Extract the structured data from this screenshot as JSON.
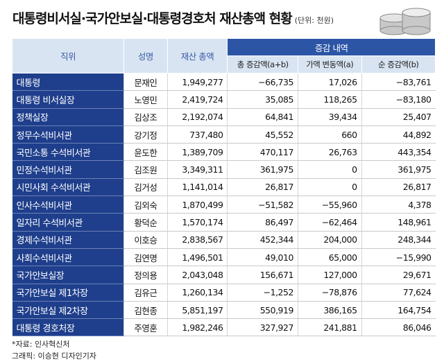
{
  "header": {
    "title": "대통령비서실·국가안보실·대통령경호처 재산총액 현황",
    "unit": "(단위: 천원)"
  },
  "table": {
    "columns": [
      "직위",
      "성명",
      "재산 총액",
      "증감 내역",
      "총 증감액(a+b)",
      "가액 변동액(a)",
      "순 증감액(b)"
    ],
    "rows": [
      [
        "대통령",
        "문재인",
        "1,949,277",
        "−66,735",
        "17,026",
        "−83,761"
      ],
      [
        "대통령 비서실장",
        "노영민",
        "2,419,724",
        "35,085",
        "118,265",
        "−83,180"
      ],
      [
        "정책실장",
        "김상조",
        "2,192,074",
        "64,841",
        "39,434",
        "25,407"
      ],
      [
        "정무수석비서관",
        "강기정",
        "737,480",
        "45,552",
        "660",
        "44,892"
      ],
      [
        "국민소통 수석비서관",
        "윤도한",
        "1,389,709",
        "470,117",
        "26,763",
        "443,354"
      ],
      [
        "민정수석비서관",
        "김조원",
        "3,349,311",
        "361,975",
        "0",
        "361,975"
      ],
      [
        "시민사회 수석비서관",
        "김거성",
        "1,141,014",
        "26,817",
        "0",
        "26,817"
      ],
      [
        "인사수석비서관",
        "김외숙",
        "1,870,499",
        "−51,582",
        "−55,960",
        "4,378"
      ],
      [
        "일자리 수석비서관",
        "황덕순",
        "1,570,174",
        "86,497",
        "−62,464",
        "148,961"
      ],
      [
        "경제수석비서관",
        "이호승",
        "2,838,567",
        "452,344",
        "204,000",
        "248,344"
      ],
      [
        "사회수석비서관",
        "김연명",
        "1,496,501",
        "49,010",
        "65,000",
        "−15,990"
      ],
      [
        "국가안보실장",
        "정의용",
        "2,043,048",
        "156,671",
        "127,000",
        "29,671"
      ],
      [
        "국가안보실 제1차장",
        "김유근",
        "1,260,134",
        "−1,252",
        "−78,876",
        "77,624"
      ],
      [
        "국가안보실 제2차장",
        "김현종",
        "5,851,197",
        "550,919",
        "386,165",
        "164,754"
      ],
      [
        "대통령 경호처장",
        "주영훈",
        "1,982,246",
        "327,927",
        "241,881",
        "86,046"
      ]
    ]
  },
  "footer": {
    "source": "*자료: 인사혁신처",
    "credit": "그래픽: 이승현 디자인기자"
  }
}
